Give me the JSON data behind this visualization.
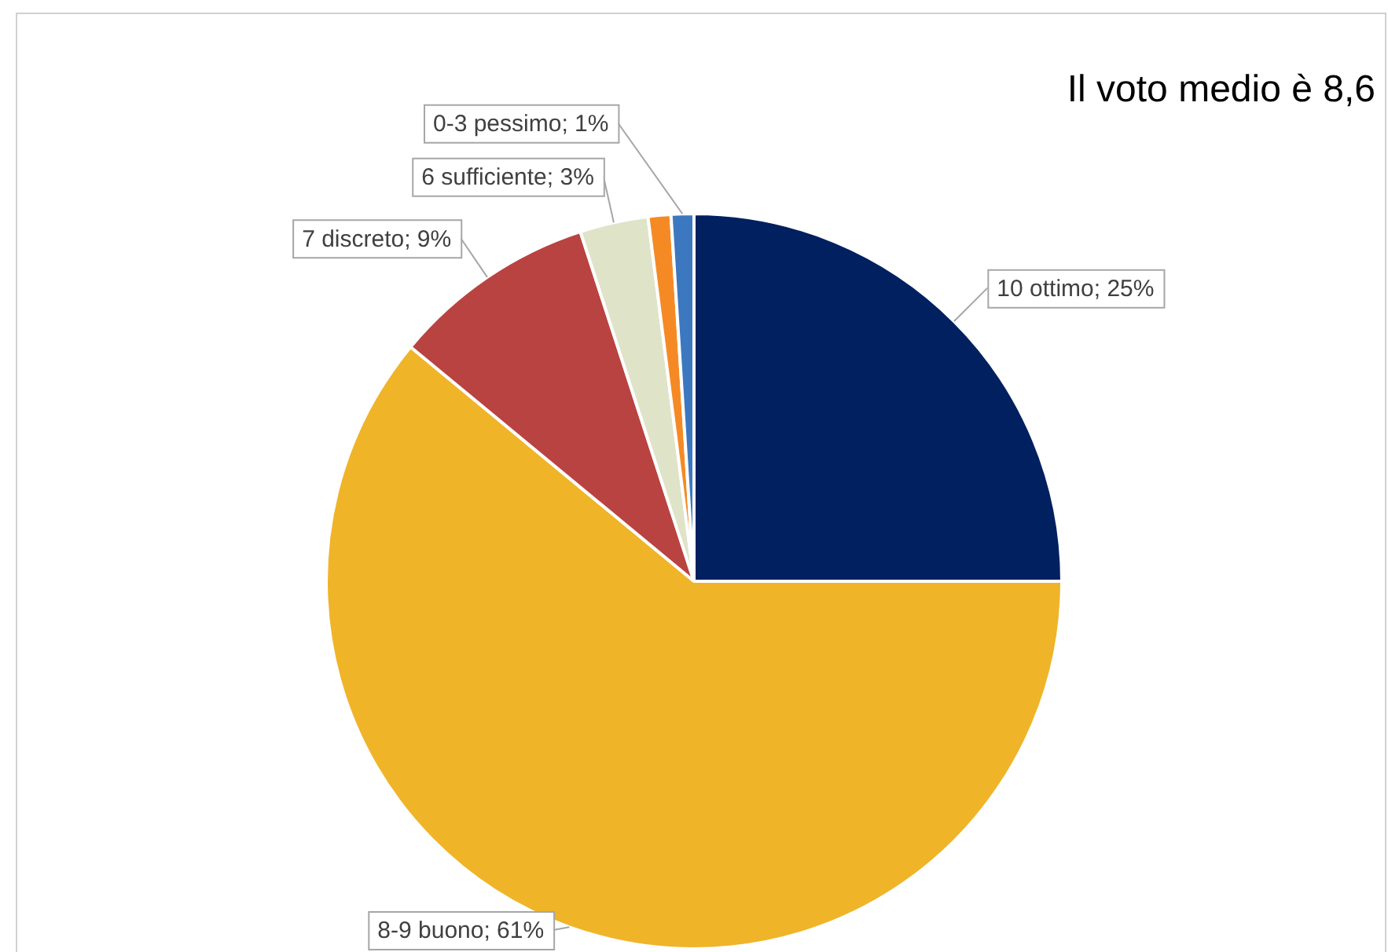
{
  "chart_data": {
    "type": "pie",
    "categories": [
      "10 ottimo",
      "8-9 buono",
      "7 discreto",
      "6 sufficiente",
      null,
      "0-3 pessimo"
    ],
    "values": [
      25,
      61,
      9,
      3,
      1,
      1
    ],
    "colors": [
      "#002060",
      "#f0b429",
      "#b94340",
      "#dfe3c8",
      "#f58a25",
      "#3c78c0"
    ],
    "value_labels": [
      "25%",
      "61%",
      "9%",
      "3%",
      null,
      "1%"
    ],
    "annotations": [
      "Il voto medio è 8,6"
    ],
    "legend": false
  }
}
